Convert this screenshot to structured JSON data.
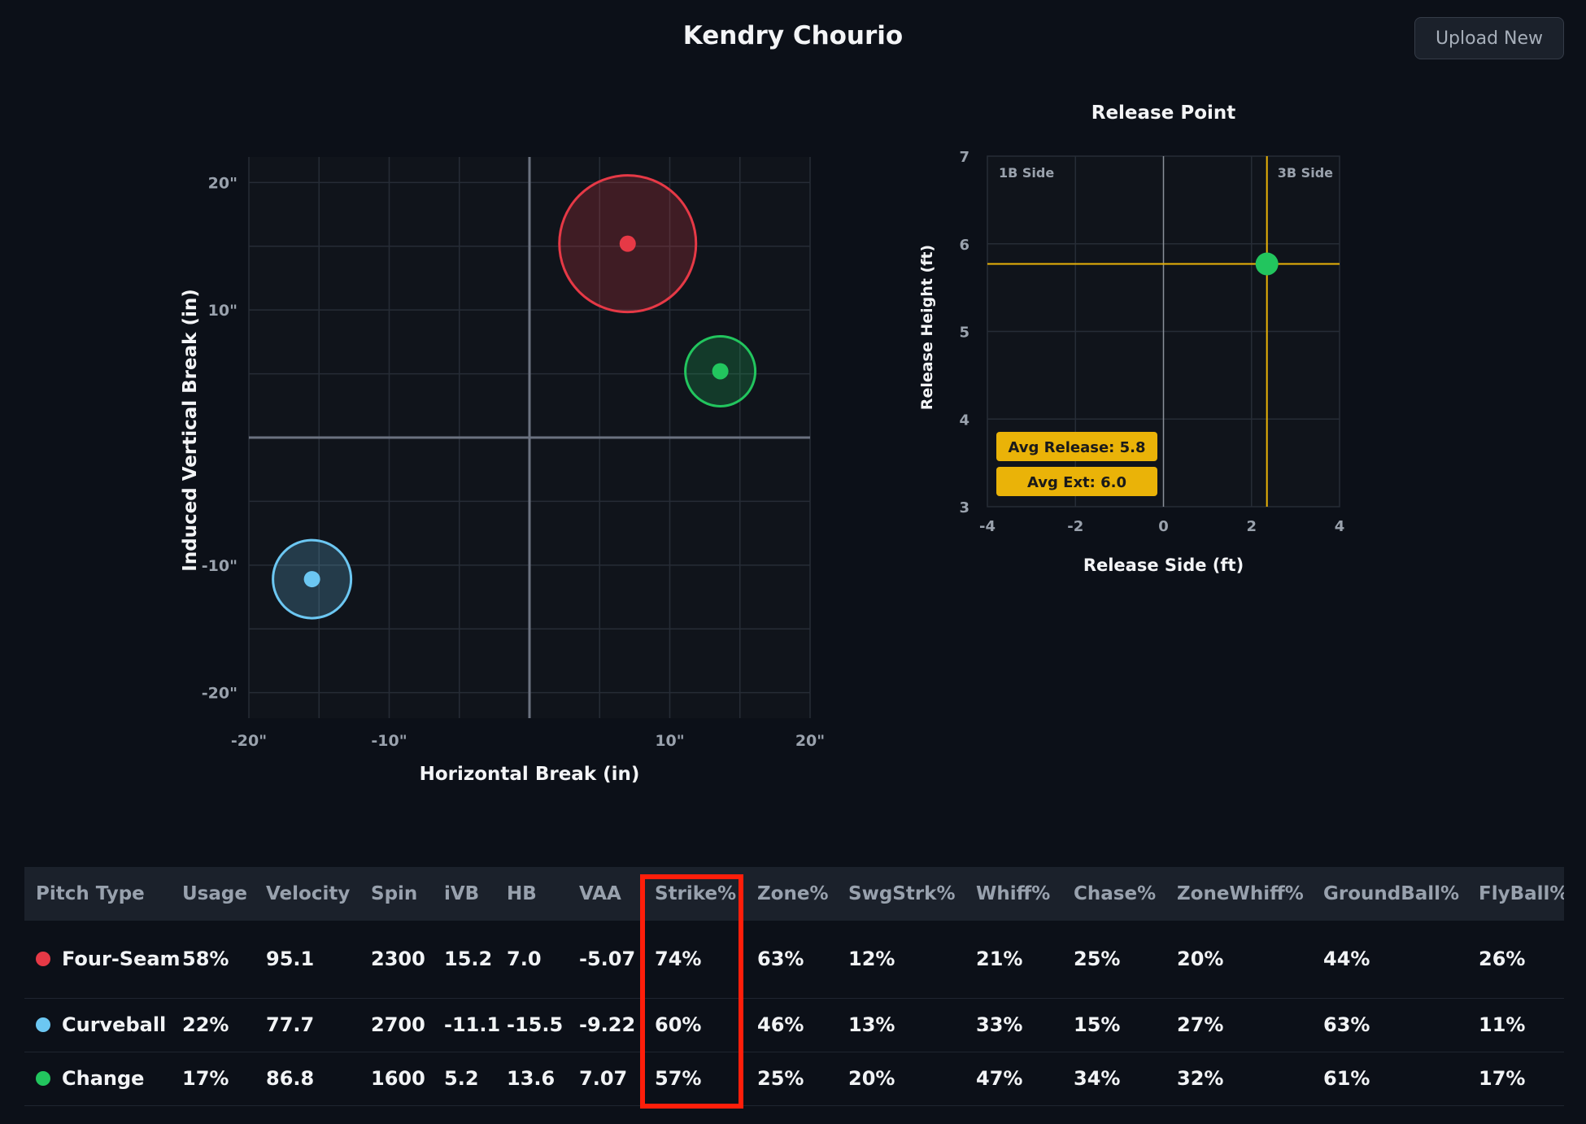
{
  "header": {
    "title": "Kendry Chourio",
    "upload_label": "Upload New"
  },
  "movement_chart": {
    "chart_data": {
      "type": "scatter",
      "title": "",
      "xlabel": "Horizontal Break (in)",
      "ylabel": "Induced Vertical Break (in)",
      "xlim": [
        -20,
        20
      ],
      "ylim": [
        -22,
        22
      ],
      "x_ticks": [
        -20,
        -10,
        10,
        20
      ],
      "x_tick_labels": [
        "-20\"",
        "-10\"",
        "10\"",
        "20\""
      ],
      "y_ticks": [
        20,
        10,
        -10,
        -20
      ],
      "y_tick_labels": [
        "20\"",
        "10\"",
        "-10\"",
        "-20\""
      ],
      "grid": true,
      "series": [
        {
          "name": "Four-Seam",
          "x": 7.0,
          "y": 15.2,
          "color": "#e63946",
          "usage": 58
        },
        {
          "name": "Curveball",
          "x": -15.5,
          "y": -11.1,
          "color": "#6cc7f2",
          "usage": 22
        },
        {
          "name": "Change",
          "x": 13.6,
          "y": 5.2,
          "color": "#22c55e",
          "usage": 17
        }
      ]
    }
  },
  "release_chart": {
    "chart_data": {
      "type": "scatter",
      "title": "Release Point",
      "xlabel": "Release Side (ft)",
      "ylabel": "Release Height (ft)",
      "xlim": [
        -4,
        4
      ],
      "ylim": [
        3,
        7
      ],
      "x_ticks": [
        -4,
        -2,
        0,
        2,
        4
      ],
      "x_tick_labels": [
        "-4",
        "-2",
        "0",
        "2",
        "4"
      ],
      "y_ticks": [
        7,
        6,
        5,
        4,
        3
      ],
      "y_tick_labels": [
        "7",
        "6",
        "5",
        "4",
        "3"
      ],
      "grid": true,
      "side_labels": {
        "left": "1B Side",
        "right": "3B Side"
      },
      "points": [
        {
          "x": 2.35,
          "y": 5.77,
          "color": "#22c55e"
        }
      ],
      "badges": [
        "Avg Release: 5.8",
        "Avg Ext: 6.0"
      ],
      "accent": "#eab308"
    }
  },
  "table": {
    "columns": [
      "Pitch Type",
      "Usage",
      "Velocity",
      "Spin",
      "iVB",
      "HB",
      "VAA",
      "Strike%",
      "Zone%",
      "SwgStrk%",
      "Whiff%",
      "Chase%",
      "ZoneWhiff%",
      "GroundBall%",
      "FlyBall%"
    ],
    "rows": [
      {
        "name": "Four-Seam",
        "color": "#e63946",
        "cells": [
          "58%",
          "95.1",
          "2300",
          "15.2",
          "7.0",
          "-5.07",
          "74%",
          "63%",
          "12%",
          "21%",
          "25%",
          "20%",
          "44%",
          "26%"
        ]
      },
      {
        "name": "Curveball",
        "color": "#6cc7f2",
        "cells": [
          "22%",
          "77.7",
          "2700",
          "-11.1",
          "-15.5",
          "-9.22",
          "60%",
          "46%",
          "13%",
          "33%",
          "15%",
          "27%",
          "63%",
          "11%"
        ]
      },
      {
        "name": "Change",
        "color": "#22c55e",
        "cells": [
          "17%",
          "86.8",
          "1600",
          "5.2",
          "13.6",
          "7.07",
          "57%",
          "25%",
          "20%",
          "47%",
          "34%",
          "32%",
          "61%",
          "17%"
        ]
      }
    ],
    "highlight_color": "#ff1e0a"
  }
}
